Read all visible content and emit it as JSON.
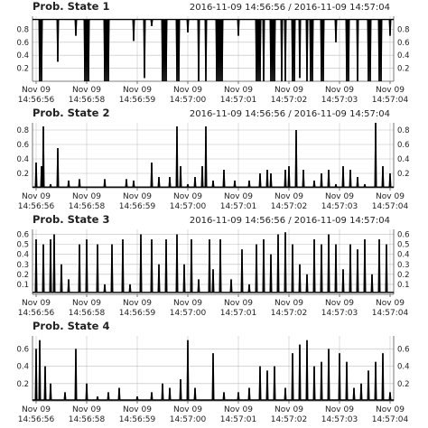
{
  "colors": {
    "series": "#000000",
    "grid": "#bdbdbd",
    "axis": "#555555",
    "text": "#222222"
  },
  "chart_data": [
    {
      "type": "line",
      "title": "Prob. State 1",
      "subtitle": "2016-11-09 14:56:56 / 2016-11-09 14:57:04",
      "xlabel": "",
      "ylabel": "",
      "ylim": [
        0,
        1.0
      ],
      "yticks": [
        "0.2",
        "0.4",
        "0.6",
        "0.8"
      ],
      "ytick_values": [
        0.2,
        0.4,
        0.6,
        0.8
      ],
      "xticks": [
        {
          "line1": "Nov 09",
          "line2": "14:56:56"
        },
        {
          "line1": "Nov 09",
          "line2": "14:56:58"
        },
        {
          "line1": "Nov 09",
          "line2": "14:56:59"
        },
        {
          "line1": "Nov 09",
          "line2": "14:57:00"
        },
        {
          "line1": "Nov 09",
          "line2": "14:57:01"
        },
        {
          "line1": "Nov 09",
          "line2": "14:57:02"
        },
        {
          "line1": "Nov 09",
          "line2": "14:57:03"
        },
        {
          "line1": "Nov 09",
          "line2": "14:57:04"
        }
      ],
      "baseline": 0.95,
      "spikes": [
        [
          0.02,
          0.0
        ],
        [
          0.025,
          0.0
        ],
        [
          0.07,
          0.3
        ],
        [
          0.12,
          0.7
        ],
        [
          0.145,
          0.0
        ],
        [
          0.15,
          0.0
        ],
        [
          0.155,
          0.0
        ],
        [
          0.2,
          0.0
        ],
        [
          0.205,
          0.0
        ],
        [
          0.21,
          0.0
        ],
        [
          0.28,
          0.62
        ],
        [
          0.31,
          0.05
        ],
        [
          0.33,
          0.85
        ],
        [
          0.36,
          0.0
        ],
        [
          0.365,
          0.0
        ],
        [
          0.37,
          0.0
        ],
        [
          0.4,
          0.0
        ],
        [
          0.405,
          0.0
        ],
        [
          0.43,
          0.75
        ],
        [
          0.46,
          0.0
        ],
        [
          0.48,
          0.0
        ],
        [
          0.51,
          0.0
        ],
        [
          0.515,
          0.0
        ],
        [
          0.52,
          0.0
        ],
        [
          0.525,
          0.0
        ],
        [
          0.57,
          0.7
        ],
        [
          0.62,
          0.0
        ],
        [
          0.625,
          0.0
        ],
        [
          0.63,
          0.0
        ],
        [
          0.64,
          0.0
        ],
        [
          0.66,
          0.0
        ],
        [
          0.665,
          0.0
        ],
        [
          0.67,
          0.0
        ],
        [
          0.69,
          0.0
        ],
        [
          0.7,
          0.0
        ],
        [
          0.72,
          0.0
        ],
        [
          0.725,
          0.0
        ],
        [
          0.74,
          0.05
        ],
        [
          0.76,
          0.0
        ],
        [
          0.77,
          0.0
        ],
        [
          0.775,
          0.0
        ],
        [
          0.8,
          0.0
        ],
        [
          0.805,
          0.0
        ],
        [
          0.84,
          0.6
        ],
        [
          0.87,
          0.0
        ],
        [
          0.875,
          0.0
        ],
        [
          0.9,
          0.0
        ],
        [
          0.93,
          0.0
        ],
        [
          0.935,
          0.0
        ],
        [
          0.96,
          0.0
        ],
        [
          0.965,
          0.0
        ],
        [
          0.99,
          0.7
        ]
      ]
    },
    {
      "type": "line",
      "title": "Prob. State 2",
      "subtitle": "2016-11-09 14:56:56 / 2016-11-09 14:57:04",
      "xlabel": "",
      "ylabel": "",
      "ylim": [
        0,
        0.9
      ],
      "yticks": [
        "0.2",
        "0.4",
        "0.6",
        "0.8"
      ],
      "ytick_values": [
        0.2,
        0.4,
        0.6,
        0.8
      ],
      "xticks": [
        {
          "line1": "Nov 09",
          "line2": "14:56:56"
        },
        {
          "line1": "Nov 09",
          "line2": "14:56:58"
        },
        {
          "line1": "Nov 09",
          "line2": "14:56:59"
        },
        {
          "line1": "Nov 09",
          "line2": "14:57:00"
        },
        {
          "line1": "Nov 09",
          "line2": "14:57:01"
        },
        {
          "line1": "Nov 09",
          "line2": "14:57:02"
        },
        {
          "line1": "Nov 09",
          "line2": "14:57:03"
        },
        {
          "line1": "Nov 09",
          "line2": "14:57:04"
        }
      ],
      "baseline": 0.01,
      "spikes": [
        [
          0.01,
          0.35
        ],
        [
          0.025,
          0.3
        ],
        [
          0.03,
          0.85
        ],
        [
          0.05,
          0.05
        ],
        [
          0.07,
          0.55
        ],
        [
          0.1,
          0.1
        ],
        [
          0.13,
          0.12
        ],
        [
          0.2,
          0.12
        ],
        [
          0.26,
          0.12
        ],
        [
          0.28,
          0.1
        ],
        [
          0.33,
          0.35
        ],
        [
          0.35,
          0.15
        ],
        [
          0.38,
          0.15
        ],
        [
          0.4,
          0.85
        ],
        [
          0.41,
          0.3
        ],
        [
          0.43,
          0.05
        ],
        [
          0.45,
          0.15
        ],
        [
          0.47,
          0.3
        ],
        [
          0.48,
          0.85
        ],
        [
          0.5,
          0.1
        ],
        [
          0.53,
          0.25
        ],
        [
          0.56,
          0.1
        ],
        [
          0.6,
          0.1
        ],
        [
          0.63,
          0.2
        ],
        [
          0.65,
          0.25
        ],
        [
          0.66,
          0.2
        ],
        [
          0.7,
          0.25
        ],
        [
          0.71,
          0.3
        ],
        [
          0.73,
          0.8
        ],
        [
          0.75,
          0.25
        ],
        [
          0.78,
          0.1
        ],
        [
          0.8,
          0.2
        ],
        [
          0.82,
          0.25
        ],
        [
          0.84,
          0.05
        ],
        [
          0.86,
          0.3
        ],
        [
          0.88,
          0.25
        ],
        [
          0.9,
          0.15
        ],
        [
          0.92,
          0.05
        ],
        [
          0.95,
          0.9
        ],
        [
          0.97,
          0.3
        ],
        [
          0.99,
          0.2
        ]
      ]
    },
    {
      "type": "line",
      "title": "Prob. State 3",
      "subtitle": "2016-11-09 14:56:56 / 2016-11-09 14:57:04",
      "xlabel": "",
      "ylabel": "",
      "ylim": [
        0,
        0.65
      ],
      "yticks": [
        "0.1",
        "0.2",
        "0.3",
        "0.4",
        "0.5",
        "0.6"
      ],
      "ytick_values": [
        0.1,
        0.2,
        0.3,
        0.4,
        0.5,
        0.6
      ],
      "xticks": [
        {
          "line1": "Nov 09",
          "line2": "14:56:56"
        },
        {
          "line1": "Nov 09",
          "line2": "14:56:58"
        },
        {
          "line1": "Nov 09",
          "line2": "14:56:59"
        },
        {
          "line1": "Nov 09",
          "line2": "14:57:00"
        },
        {
          "line1": "Nov 09",
          "line2": "14:57:01"
        },
        {
          "line1": "Nov 09",
          "line2": "14:57:02"
        },
        {
          "line1": "Nov 09",
          "line2": "14:57:03"
        },
        {
          "line1": "Nov 09",
          "line2": "14:57:04"
        }
      ],
      "baseline": 0.02,
      "spikes": [
        [
          0.01,
          0.55
        ],
        [
          0.03,
          0.5
        ],
        [
          0.05,
          0.55
        ],
        [
          0.06,
          0.6
        ],
        [
          0.08,
          0.3
        ],
        [
          0.1,
          0.15
        ],
        [
          0.13,
          0.5
        ],
        [
          0.15,
          0.55
        ],
        [
          0.18,
          0.5
        ],
        [
          0.2,
          0.1
        ],
        [
          0.22,
          0.5
        ],
        [
          0.25,
          0.55
        ],
        [
          0.27,
          0.1
        ],
        [
          0.3,
          0.6
        ],
        [
          0.33,
          0.55
        ],
        [
          0.35,
          0.3
        ],
        [
          0.37,
          0.55
        ],
        [
          0.4,
          0.6
        ],
        [
          0.42,
          0.3
        ],
        [
          0.44,
          0.55
        ],
        [
          0.46,
          0.15
        ],
        [
          0.49,
          0.55
        ],
        [
          0.5,
          0.25
        ],
        [
          0.52,
          0.55
        ],
        [
          0.55,
          0.15
        ],
        [
          0.58,
          0.45
        ],
        [
          0.6,
          0.1
        ],
        [
          0.62,
          0.5
        ],
        [
          0.64,
          0.55
        ],
        [
          0.66,
          0.4
        ],
        [
          0.68,
          0.6
        ],
        [
          0.7,
          0.62
        ],
        [
          0.72,
          0.5
        ],
        [
          0.74,
          0.3
        ],
        [
          0.76,
          0.2
        ],
        [
          0.78,
          0.55
        ],
        [
          0.8,
          0.5
        ],
        [
          0.82,
          0.6
        ],
        [
          0.84,
          0.5
        ],
        [
          0.86,
          0.25
        ],
        [
          0.88,
          0.5
        ],
        [
          0.9,
          0.45
        ],
        [
          0.92,
          0.55
        ],
        [
          0.94,
          0.2
        ],
        [
          0.96,
          0.55
        ],
        [
          0.98,
          0.5
        ]
      ]
    },
    {
      "type": "line",
      "title": "Prob. State 4",
      "subtitle": "",
      "xlabel": "",
      "ylabel": "",
      "ylim": [
        0,
        0.75
      ],
      "yticks": [
        "0.2",
        "0.4",
        "0.6"
      ],
      "ytick_values": [
        0.2,
        0.4,
        0.6
      ],
      "xticks": [
        {
          "line1": "Nov 09",
          "line2": "14:56:56"
        },
        {
          "line1": "Nov 09",
          "line2": "14:56:58"
        },
        {
          "line1": "Nov 09",
          "line2": "14:56:59"
        },
        {
          "line1": "Nov 09",
          "line2": "14:57:00"
        },
        {
          "line1": "Nov 09",
          "line2": "14:57:01"
        },
        {
          "line1": "Nov 09",
          "line2": "14:57:02"
        },
        {
          "line1": "Nov 09",
          "line2": "14:57:03"
        },
        {
          "line1": "Nov 09",
          "line2": "14:57:04"
        }
      ],
      "baseline": 0.01,
      "spikes": [
        [
          0.01,
          0.6
        ],
        [
          0.02,
          0.7
        ],
        [
          0.035,
          0.4
        ],
        [
          0.05,
          0.2
        ],
        [
          0.09,
          0.1
        ],
        [
          0.12,
          0.6
        ],
        [
          0.15,
          0.2
        ],
        [
          0.18,
          0.05
        ],
        [
          0.21,
          0.1
        ],
        [
          0.24,
          0.15
        ],
        [
          0.29,
          0.05
        ],
        [
          0.33,
          0.1
        ],
        [
          0.36,
          0.2
        ],
        [
          0.38,
          0.15
        ],
        [
          0.41,
          0.25
        ],
        [
          0.43,
          0.7
        ],
        [
          0.45,
          0.15
        ],
        [
          0.5,
          0.55
        ],
        [
          0.53,
          0.1
        ],
        [
          0.57,
          0.1
        ],
        [
          0.6,
          0.15
        ],
        [
          0.63,
          0.4
        ],
        [
          0.65,
          0.35
        ],
        [
          0.67,
          0.4
        ],
        [
          0.7,
          0.15
        ],
        [
          0.72,
          0.55
        ],
        [
          0.74,
          0.65
        ],
        [
          0.76,
          0.7
        ],
        [
          0.78,
          0.4
        ],
        [
          0.8,
          0.45
        ],
        [
          0.82,
          0.6
        ],
        [
          0.85,
          0.55
        ],
        [
          0.87,
          0.45
        ],
        [
          0.89,
          0.15
        ],
        [
          0.91,
          0.2
        ],
        [
          0.93,
          0.35
        ],
        [
          0.95,
          0.45
        ],
        [
          0.97,
          0.55
        ],
        [
          0.99,
          0.1
        ]
      ]
    }
  ]
}
